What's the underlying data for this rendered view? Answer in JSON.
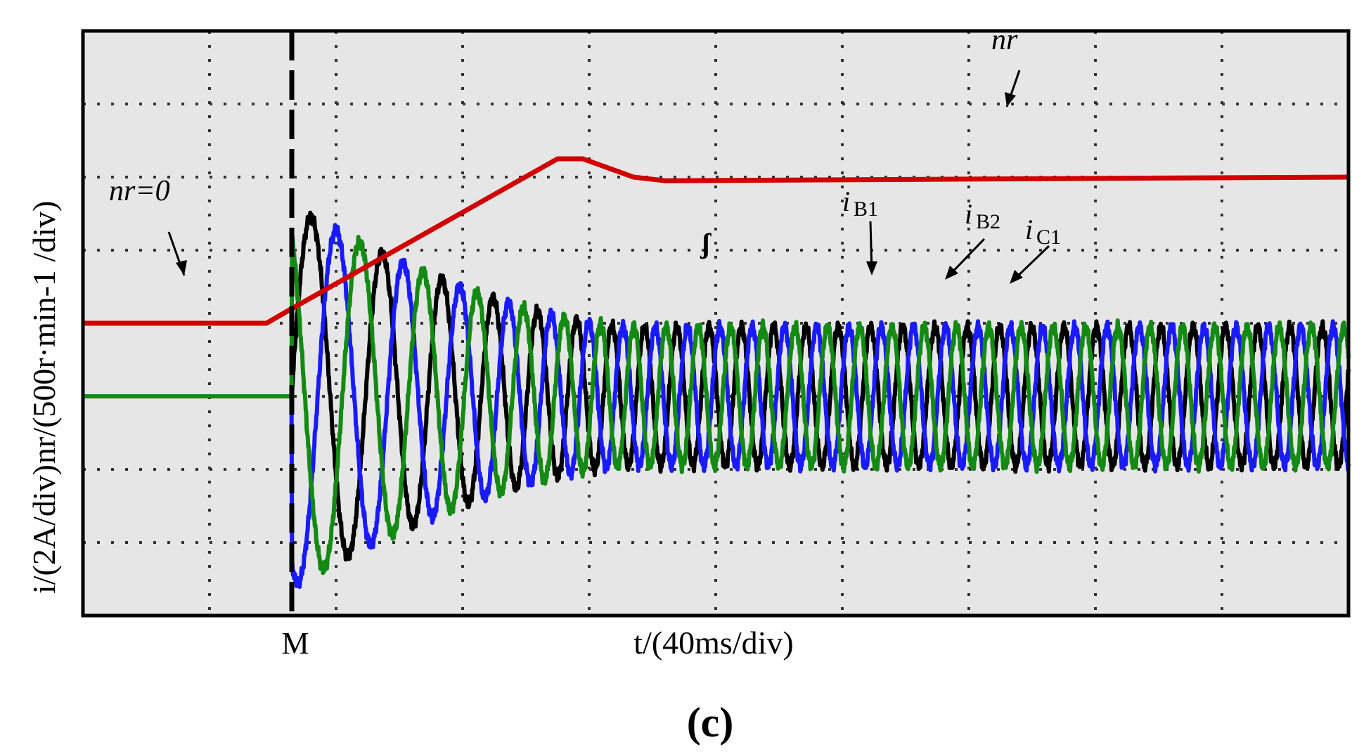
{
  "chart_data": {
    "type": "line",
    "x_label": "t/(40ms/div)",
    "y_label_top": "nr/(500r·min-1 /div)",
    "y_label_bottom": "i/(2A/div)",
    "marker_label": "M",
    "caption": "(c)",
    "x_divisions": 10,
    "y_divisions": 8,
    "marker_at_div": 1.65,
    "speed": {
      "name": "nr",
      "initial_label": "nr=0",
      "steady_label": "nr",
      "color": "#d00000",
      "points_div": [
        [
          0,
          4.0
        ],
        [
          1.45,
          4.0
        ],
        [
          1.65,
          4.2
        ],
        [
          3.75,
          6.25
        ],
        [
          3.95,
          6.25
        ],
        [
          4.35,
          6.0
        ],
        [
          4.6,
          5.95
        ],
        [
          10,
          6.0
        ]
      ]
    },
    "currents": {
      "baseline_div": 3.0,
      "start_div": 1.65,
      "settle_div": 4.35,
      "initial_amplitude_div": 2.6,
      "final_amplitude_div": 0.95,
      "initial_period_div": 0.64,
      "final_period_div": 0.255,
      "series": [
        {
          "name": "iB1",
          "label_main": "i",
          "label_sub": "B1",
          "color": "#000000",
          "phase_deg": 0
        },
        {
          "name": "iB2",
          "label_main": "i",
          "label_sub": "B2",
          "color": "#1a1aff",
          "phase_deg": 240
        },
        {
          "name": "iC1",
          "label_main": "i",
          "label_sub": "C1",
          "color": "#138a13",
          "phase_deg": 120
        }
      ]
    },
    "step_symbol": "ʃ",
    "colors": {
      "grid": "#333333",
      "background": "#e6e6e6",
      "frame": "#000000"
    }
  }
}
